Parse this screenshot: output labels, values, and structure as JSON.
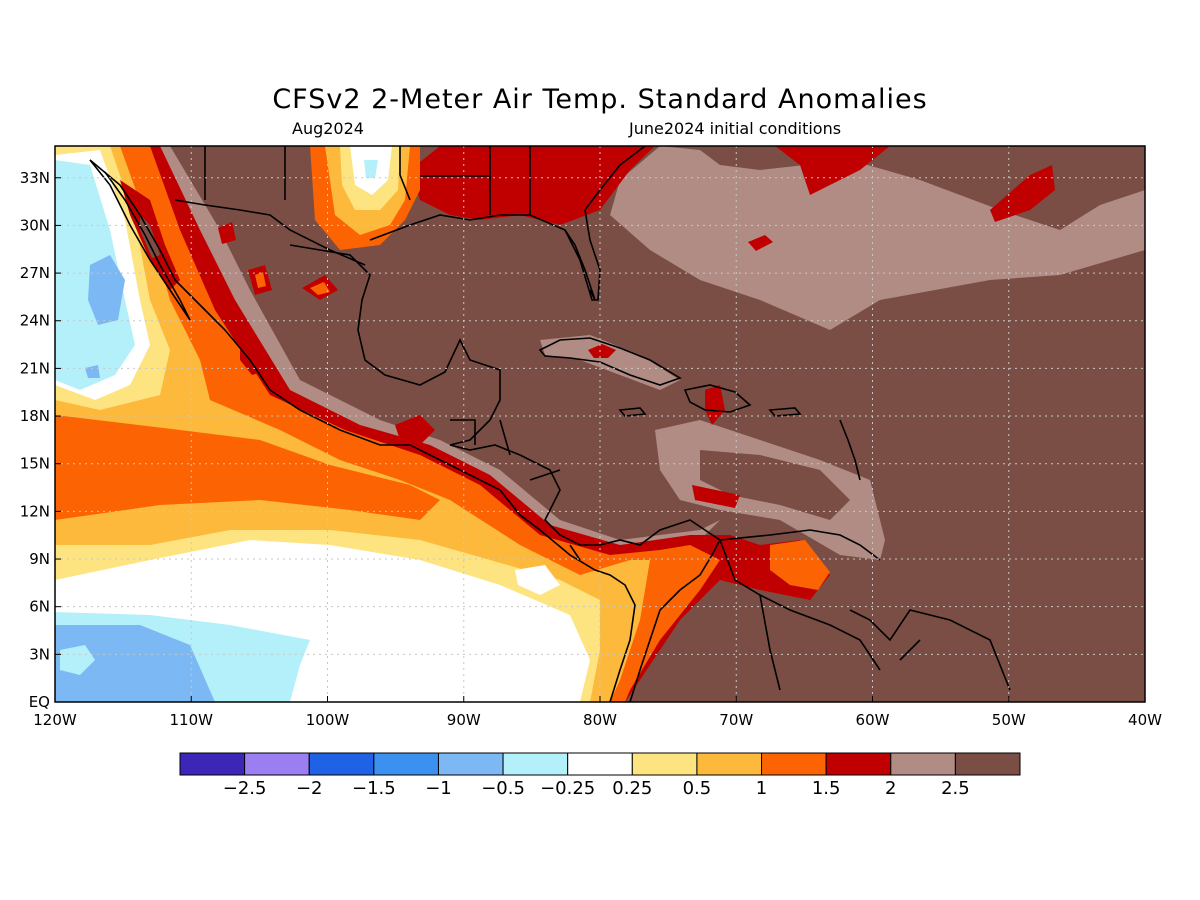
{
  "title": "CFSv2 2-Meter Air Temp. Standard Anomalies",
  "valid_month": "Aug2024",
  "init_label": "June2024 initial conditions",
  "lat_labels": [
    "EQ",
    "3N",
    "6N",
    "9N",
    "12N",
    "15N",
    "18N",
    "21N",
    "24N",
    "27N",
    "30N",
    "33N"
  ],
  "lat_values": [
    0,
    3,
    6,
    9,
    12,
    15,
    18,
    21,
    24,
    27,
    30,
    33
  ],
  "lon_labels": [
    "120W",
    "110W",
    "100W",
    "90W",
    "80W",
    "70W",
    "60W",
    "50W",
    "40W"
  ],
  "lon_values": [
    -120,
    -110,
    -100,
    -90,
    -80,
    -70,
    -60,
    -50,
    -40
  ],
  "map_extent": {
    "lon_min": -120,
    "lon_max": -40,
    "lat_min": 0,
    "lat_max": 35
  },
  "colorbar": {
    "colors": [
      "#3c26b8",
      "#9b7ff0",
      "#1f62e6",
      "#3c90f0",
      "#7cb8f4",
      "#b4f0fa",
      "#ffffff",
      "#fee480",
      "#fdb93b",
      "#fc6303",
      "#c00000",
      "#b08c84",
      "#7a4e44"
    ],
    "labels": [
      "-2.5",
      "-2",
      "-1.5",
      "-1",
      "-0.5",
      "-0.25",
      "0.25",
      "0.5",
      "1",
      "1.5",
      "2",
      "2.5"
    ]
  },
  "colors": {
    "background_land": "#7a4e44",
    "grid": "#c8c8c8",
    "coast": "#000000"
  }
}
